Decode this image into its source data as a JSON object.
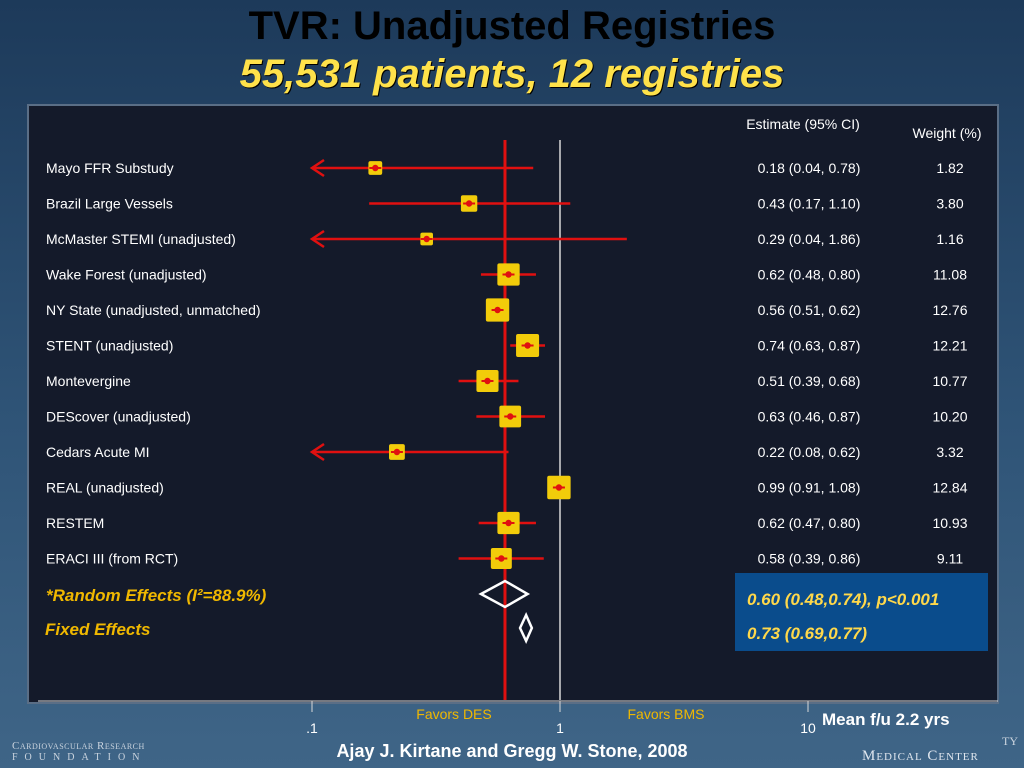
{
  "title": "TVR: Unadjusted Registries",
  "subtitle": "55,531 patients, 12 registries",
  "columns": {
    "estimate_header": "Estimate (95% CI)",
    "weight_header": "Weight (%)"
  },
  "colors": {
    "box_fill": "#f2cc0a",
    "ci_line": "#e01010",
    "reference_line": "#e01010",
    "accent_text": "#f0b800",
    "summary_box": "#0a4c8c",
    "summary_text": "#ffd84a"
  },
  "chart_data": {
    "type": "forest",
    "x_scale": "log",
    "xlim": [
      0.1,
      10
    ],
    "x_ticks": [
      0.1,
      1,
      10
    ],
    "x_tick_labels": [
      ".1",
      "1",
      "10"
    ],
    "null_value": 1,
    "pooled_line_value": 0.6,
    "rows": [
      {
        "study": "Mayo FFR Substudy",
        "estimate": 0.18,
        "lo": 0.04,
        "hi": 0.78,
        "est_text": "0.18 (0.04, 0.78)",
        "weight": 1.82,
        "weight_text": "1.82",
        "truncated_left": true
      },
      {
        "study": "Brazil Large Vessels",
        "estimate": 0.43,
        "lo": 0.17,
        "hi": 1.1,
        "est_text": "0.43 (0.17, 1.10)",
        "weight": 3.8,
        "weight_text": "3.80",
        "truncated_left": false
      },
      {
        "study": "McMaster STEMI (unadjusted)",
        "estimate": 0.29,
        "lo": 0.04,
        "hi": 1.86,
        "est_text": "0.29 (0.04, 1.86)",
        "weight": 1.16,
        "weight_text": "1.16",
        "truncated_left": true
      },
      {
        "study": "Wake Forest (unadjusted)",
        "estimate": 0.62,
        "lo": 0.48,
        "hi": 0.8,
        "est_text": "0.62 (0.48, 0.80)",
        "weight": 11.08,
        "weight_text": "11.08",
        "truncated_left": false
      },
      {
        "study": "NY State (unadjusted, unmatched)",
        "estimate": 0.56,
        "lo": 0.51,
        "hi": 0.62,
        "est_text": "0.56 (0.51, 0.62)",
        "weight": 12.76,
        "weight_text": "12.76",
        "truncated_left": false
      },
      {
        "study": "STENT (unadjusted)",
        "estimate": 0.74,
        "lo": 0.63,
        "hi": 0.87,
        "est_text": "0.74 (0.63, 0.87)",
        "weight": 12.21,
        "weight_text": "12.21",
        "truncated_left": false
      },
      {
        "study": "Montevergine",
        "estimate": 0.51,
        "lo": 0.39,
        "hi": 0.68,
        "est_text": "0.51 (0.39, 0.68)",
        "weight": 10.77,
        "weight_text": "10.77",
        "truncated_left": false
      },
      {
        "study": "DEScover (unadjusted)",
        "estimate": 0.63,
        "lo": 0.46,
        "hi": 0.87,
        "est_text": "0.63 (0.46, 0.87)",
        "weight": 10.2,
        "weight_text": "10.20",
        "truncated_left": false
      },
      {
        "study": "Cedars Acute MI",
        "estimate": 0.22,
        "lo": 0.08,
        "hi": 0.62,
        "est_text": "0.22 (0.08, 0.62)",
        "weight": 3.32,
        "weight_text": "3.32",
        "truncated_left": true
      },
      {
        "study": "REAL (unadjusted)",
        "estimate": 0.99,
        "lo": 0.91,
        "hi": 1.08,
        "est_text": "0.99 (0.91, 1.08)",
        "weight": 12.84,
        "weight_text": "12.84",
        "truncated_left": false
      },
      {
        "study": "RESTEM",
        "estimate": 0.62,
        "lo": 0.47,
        "hi": 0.8,
        "est_text": "0.62 (0.47, 0.80)",
        "weight": 10.93,
        "weight_text": "10.93",
        "truncated_left": false
      },
      {
        "study": "ERACI III (from RCT)",
        "estimate": 0.58,
        "lo": 0.39,
        "hi": 0.86,
        "est_text": "0.58 (0.39, 0.86)",
        "weight": 9.11,
        "weight_text": "9.11",
        "truncated_left": false
      }
    ],
    "summaries": [
      {
        "label": "*Random Effects (I²=88.9%)",
        "estimate": 0.6,
        "lo": 0.48,
        "hi": 0.74,
        "text": "0.60 (0.48,0.74), p<0.001"
      },
      {
        "label": "Fixed Effects",
        "estimate": 0.73,
        "lo": 0.69,
        "hi": 0.77,
        "text": "0.73 (0.69,0.77)"
      }
    ],
    "favors_left": "Favors DES",
    "favors_right": "Favors BMS"
  },
  "mean_followup": "Mean f/u 2.2 yrs",
  "citation": "Ajay J. Kirtane and Gregg W. Stone, 2008",
  "logo_left_line1": "Cardiovascular Research",
  "logo_left_line2": "FOUNDATION",
  "logo_right_text": "Medical Center",
  "logo_right_edge_text": "TY"
}
